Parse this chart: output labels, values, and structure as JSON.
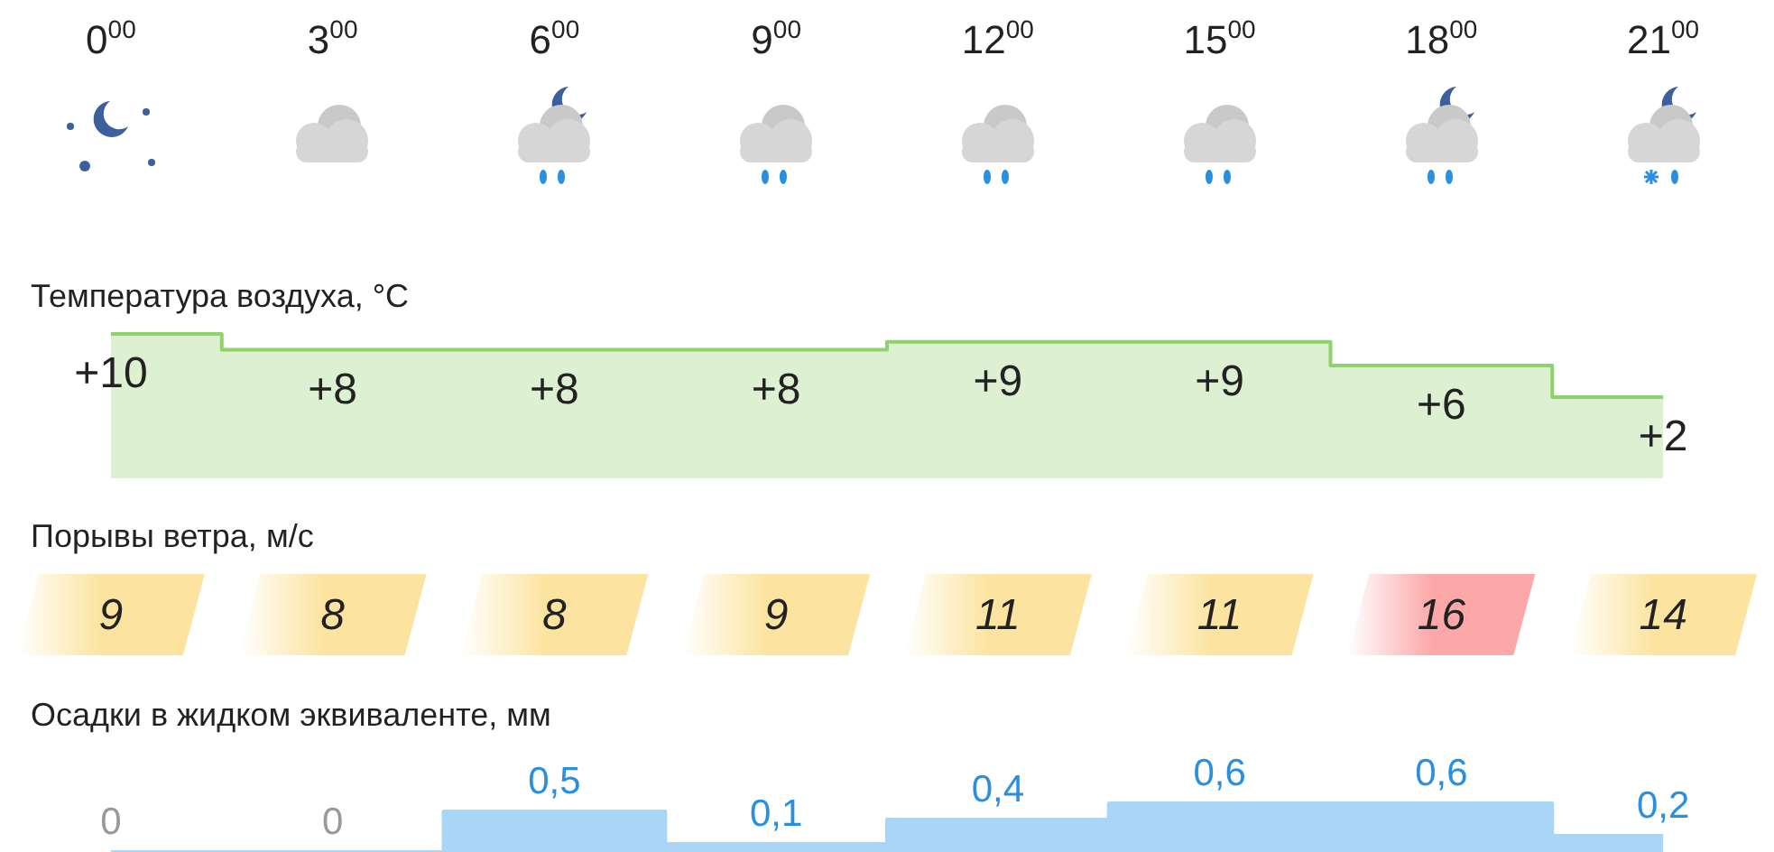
{
  "chart_data": [
    {
      "type": "step",
      "title": "Температура воздуха, °C",
      "categories": [
        "0$^{00}$",
        "3$^{00}$",
        "6$^{00}$",
        "9$^{00}$",
        "12$^{00}$",
        "15$^{00}$",
        "18$^{00}$",
        "21$^{00}$"
      ],
      "values": [
        10,
        8,
        8,
        8,
        9,
        9,
        6,
        2
      ],
      "value_labels": [
        "+10",
        "+8",
        "+8",
        "+8",
        "+9",
        "+9",
        "+6",
        "+2"
      ],
      "color": "#8fd16a",
      "tick_labels": "x"
    },
    {
      "type": "other",
      "title": "Порывы ветра, м/с",
      "values": [
        9,
        8,
        8,
        9,
        11,
        11,
        16,
        14
      ],
      "colors": [
        "#fce4a0",
        "#fce4a0",
        "#fce4a0",
        "#fce4a0",
        "#fce4a0",
        "#fce4a0",
        "#fca8a8",
        "#fce4a0"
      ],
      "data_labels": true
    },
    {
      "type": "area",
      "title": "Осадки в жидком эквиваленте, мм",
      "categories": [
        null,
        null,
        null,
        null,
        null,
        null,
        null,
        null
      ],
      "values": [
        0,
        0,
        0.5,
        0.1,
        0.4,
        0.6,
        0.6,
        0.2
      ],
      "value_labels": [
        "0",
        "0",
        "0,5",
        "0,1",
        "0,4",
        "0,6",
        "0,6",
        "0,2"
      ],
      "color": "#a9d6f7",
      "tick_labels": false
    }
  ]
}
